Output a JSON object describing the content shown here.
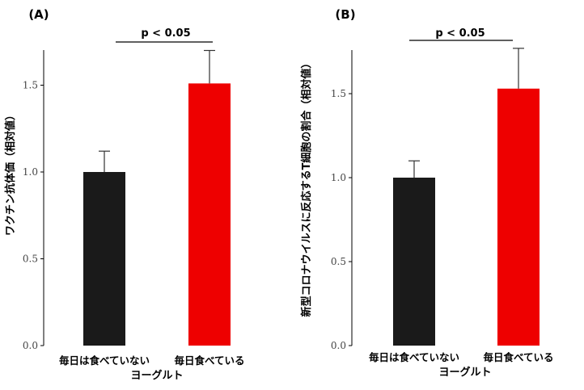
{
  "chart_data": [
    {
      "type": "bar",
      "panel_label": "(A)",
      "categories": [
        "毎日は食べていない",
        "毎日食べている"
      ],
      "values": [
        1.0,
        1.51
      ],
      "errors": [
        0.12,
        0.19
      ],
      "colors": [
        "#1a1a1a",
        "#ee0000"
      ],
      "xlabel": "ヨーグルト",
      "ylabel": "ワクチン抗体価（相対値）",
      "ylim": [
        0,
        1.7
      ],
      "yticks": [
        0.0,
        0.5,
        1.0,
        1.5
      ],
      "ytick_labels": [
        "0.0",
        "0.5",
        "1.0",
        "1.5"
      ],
      "significance": "p < 0.05"
    },
    {
      "type": "bar",
      "panel_label": "(B)",
      "categories": [
        "毎日は食べていない",
        "毎日食べている"
      ],
      "values": [
        1.0,
        1.53
      ],
      "errors": [
        0.1,
        0.24
      ],
      "colors": [
        "#1a1a1a",
        "#ee0000"
      ],
      "xlabel": "ヨーグルト",
      "ylabel": "新型コロナウイルスに反応するT細胞の割合（相対値）",
      "ylim": [
        0,
        1.77
      ],
      "yticks": [
        0.0,
        0.5,
        1.0,
        1.5
      ],
      "ytick_labels": [
        "0.0",
        "0.5",
        "1.0",
        "1.5"
      ],
      "significance": "p < 0.05"
    }
  ]
}
